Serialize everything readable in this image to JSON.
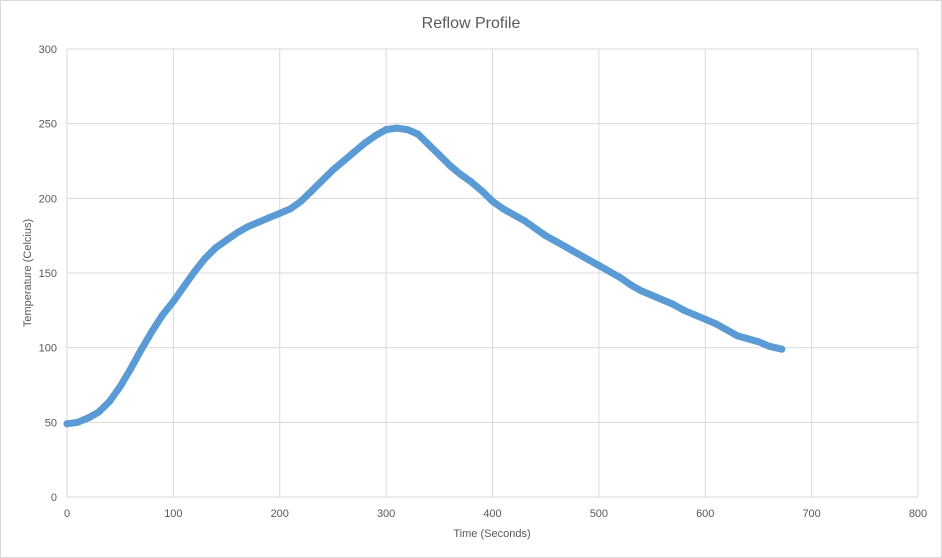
{
  "chart_data": {
    "type": "scatter",
    "title": "Reflow Profile",
    "xlabel": "Time (Seconds)",
    "ylabel": "Temperature (Celcius)",
    "xlim": [
      0,
      800
    ],
    "ylim": [
      0,
      300
    ],
    "xticks": [
      "0",
      "100",
      "200",
      "300",
      "400",
      "500",
      "600",
      "700",
      "800"
    ],
    "yticks": [
      "0",
      "50",
      "100",
      "150",
      "200",
      "250",
      "300"
    ],
    "grid": true,
    "legend": "none",
    "color": "#5B9BD5",
    "series": [
      {
        "x": [
          0,
          10,
          20,
          30,
          40,
          50,
          60,
          70,
          80,
          90,
          100,
          110,
          120,
          130,
          140,
          150,
          160,
          170,
          180,
          190,
          200,
          210,
          220,
          230,
          240,
          250,
          260,
          270,
          280,
          290,
          300,
          310,
          320,
          330,
          340,
          350,
          360,
          370,
          380,
          390,
          400,
          410,
          420,
          430,
          440,
          450,
          460,
          470,
          480,
          490,
          500,
          510,
          520,
          530,
          540,
          550,
          560,
          570,
          580,
          590,
          600,
          610,
          620,
          630,
          640,
          650,
          660,
          672
        ],
        "y": [
          49,
          50,
          53,
          57,
          64,
          74,
          86,
          99,
          111,
          122,
          131,
          141,
          151,
          160,
          167,
          172,
          177,
          181,
          184,
          187,
          190,
          193,
          198,
          205,
          212,
          219,
          225,
          231,
          237,
          242,
          246,
          247,
          246,
          243,
          236,
          229,
          222,
          216,
          211,
          205,
          198,
          193,
          189,
          185,
          180,
          175,
          171,
          167,
          163,
          159,
          155,
          151,
          147,
          142,
          138,
          135,
          132,
          129,
          125,
          122,
          119,
          116,
          112,
          108,
          106,
          104,
          101,
          99
        ]
      }
    ]
  }
}
